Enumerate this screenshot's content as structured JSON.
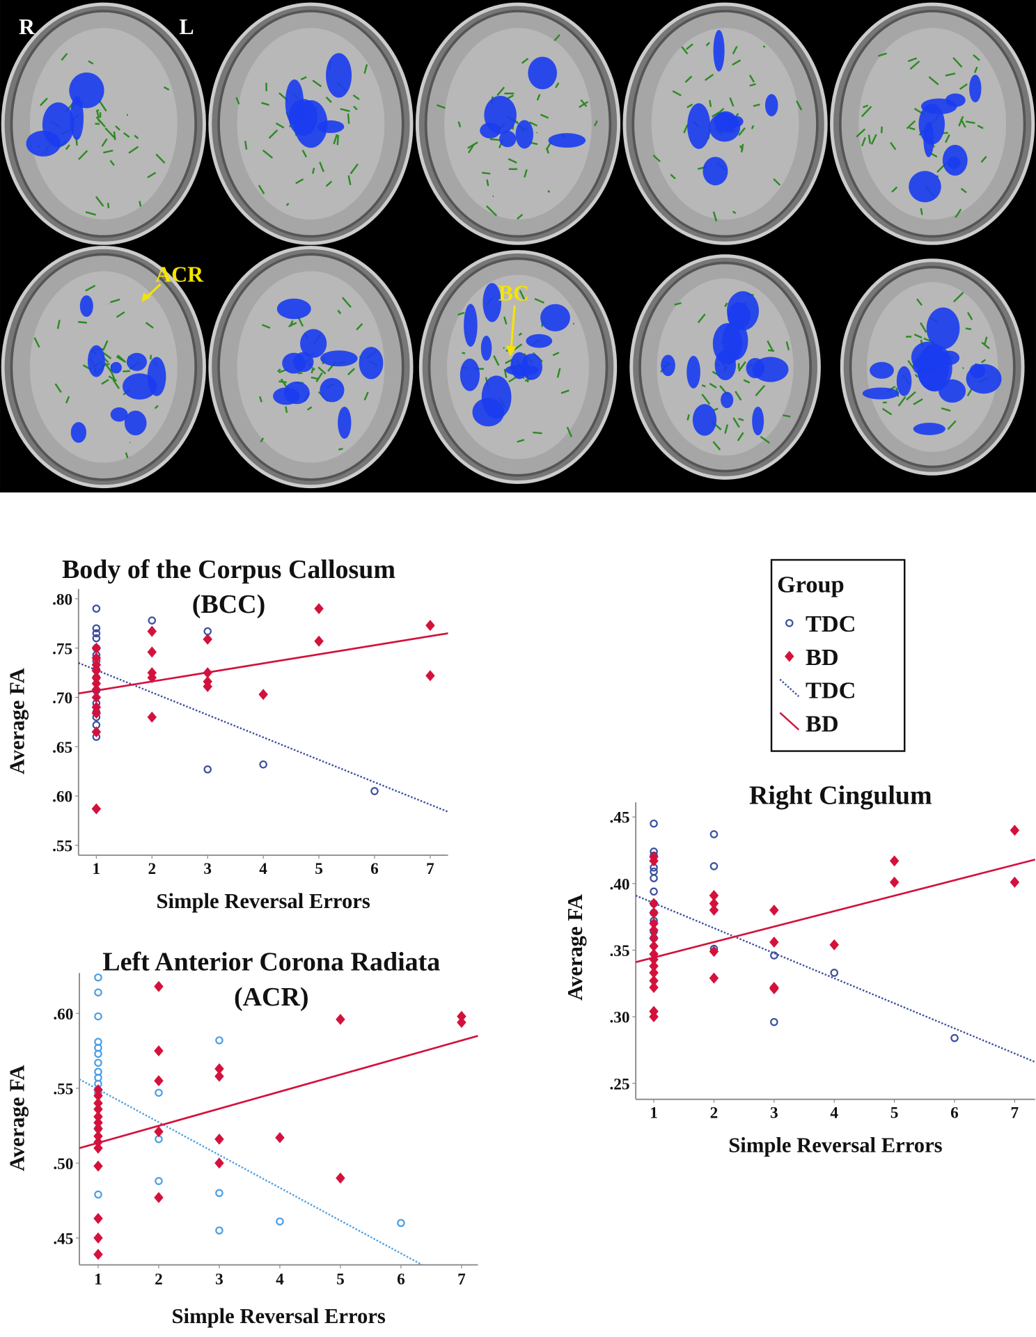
{
  "figure": {
    "orientation": [
      "R",
      "L"
    ],
    "annotations": [
      "ACR",
      "BC"
    ]
  },
  "chart_data": [
    {
      "type": "scatter",
      "title": "Body of the Corpus Callosum",
      "subtitle": "(BCC)",
      "x_label": "Simple Reversal Errors",
      "y_label": "Average FA",
      "xlim": [
        0.68,
        7.32
      ],
      "ylim": [
        0.54,
        0.81
      ],
      "xticks": [
        1,
        2,
        3,
        4,
        5,
        6,
        7
      ],
      "yticks": [
        {
          "value": 0.55,
          "label": ".55"
        },
        {
          "value": 0.6,
          "label": ".60"
        },
        {
          "value": 0.65,
          "label": ".65"
        },
        {
          "value": 0.7,
          "label": ".70"
        },
        {
          "value": 0.75,
          "label": ".75"
        },
        {
          "value": 0.8,
          "label": ".80"
        }
      ],
      "series": [
        {
          "name": "TDC",
          "color": "#3a4f9e",
          "marker": "circle",
          "x": [
            1,
            1,
            1,
            1,
            1,
            1,
            1,
            1,
            1,
            1,
            1,
            1,
            1,
            1,
            1,
            2,
            3,
            3,
            4,
            6
          ],
          "y": [
            0.79,
            0.77,
            0.765,
            0.76,
            0.75,
            0.743,
            0.737,
            0.728,
            0.72,
            0.707,
            0.694,
            0.685,
            0.68,
            0.672,
            0.66,
            0.778,
            0.767,
            0.627,
            0.632,
            0.605
          ]
        },
        {
          "name": "BD",
          "color": "#d3123c",
          "marker": "diamond",
          "x": [
            1,
            1,
            1,
            1,
            1,
            1,
            1,
            1,
            1,
            1,
            1,
            1,
            2,
            2,
            2,
            2,
            2,
            3,
            3,
            3,
            3,
            4,
            5,
            5,
            7,
            7
          ],
          "y": [
            0.75,
            0.74,
            0.733,
            0.727,
            0.72,
            0.714,
            0.708,
            0.7,
            0.69,
            0.684,
            0.665,
            0.587,
            0.767,
            0.746,
            0.725,
            0.72,
            0.68,
            0.759,
            0.725,
            0.716,
            0.711,
            0.703,
            0.79,
            0.757,
            0.773,
            0.722
          ]
        }
      ],
      "fit_lines": [
        {
          "name": "TDC",
          "color": "#3a4f9e",
          "style": "dotted",
          "x": [
            0.68,
            7.32
          ],
          "y": [
            0.735,
            0.584
          ]
        },
        {
          "name": "BD",
          "color": "#d3123c",
          "style": "solid",
          "x": [
            0.68,
            7.32
          ],
          "y": [
            0.704,
            0.765
          ]
        }
      ]
    },
    {
      "type": "scatter",
      "title": "Left Anterior Corona Radiata",
      "subtitle": "(ACR)",
      "x_label": "Simple Reversal Errors",
      "y_label": "Average FA",
      "xlim": [
        0.69,
        7.27
      ],
      "ylim": [
        0.432,
        0.627
      ],
      "xticks": [
        1,
        2,
        3,
        4,
        5,
        6,
        7
      ],
      "yticks": [
        {
          "value": 0.45,
          "label": ".45"
        },
        {
          "value": 0.5,
          "label": ".50"
        },
        {
          "value": 0.55,
          "label": ".55"
        },
        {
          "value": 0.6,
          "label": ".60"
        }
      ],
      "series": [
        {
          "name": "TDC",
          "color": "#4b9fe4",
          "marker": "circle",
          "x": [
            1,
            1,
            1,
            1,
            1,
            1,
            1,
            1,
            1,
            1,
            1,
            1,
            1,
            2,
            2,
            2,
            3,
            3,
            3,
            4,
            6
          ],
          "y": [
            0.624,
            0.614,
            0.598,
            0.581,
            0.577,
            0.573,
            0.567,
            0.561,
            0.557,
            0.553,
            0.547,
            0.523,
            0.479,
            0.547,
            0.516,
            0.488,
            0.582,
            0.48,
            0.455,
            0.461,
            0.46
          ]
        },
        {
          "name": "BD",
          "color": "#d3123c",
          "marker": "diamond",
          "x": [
            1,
            1,
            1,
            1,
            1,
            1,
            1,
            1,
            1,
            1,
            1,
            1,
            1,
            1,
            2,
            2,
            2,
            2,
            2,
            3,
            3,
            3,
            3,
            4,
            5,
            5,
            7,
            7
          ],
          "y": [
            0.549,
            0.545,
            0.54,
            0.536,
            0.531,
            0.527,
            0.523,
            0.518,
            0.514,
            0.51,
            0.498,
            0.463,
            0.45,
            0.439,
            0.618,
            0.575,
            0.555,
            0.521,
            0.477,
            0.563,
            0.558,
            0.516,
            0.5,
            0.517,
            0.596,
            0.49,
            0.598,
            0.594
          ]
        }
      ],
      "fit_lines": [
        {
          "name": "TDC",
          "color": "#4b9fe4",
          "style": "dotted",
          "x": [
            0.69,
            6.35
          ],
          "y": [
            0.556,
            0.432
          ]
        },
        {
          "name": "BD",
          "color": "#d3123c",
          "style": "solid",
          "x": [
            0.69,
            7.27
          ],
          "y": [
            0.51,
            0.585
          ]
        }
      ]
    },
    {
      "type": "scatter",
      "title": "Right Cingulum",
      "x_label": "Simple Reversal Errors",
      "y_label": "Average FA",
      "xlim": [
        0.7,
        7.34
      ],
      "ylim": [
        0.238,
        0.461
      ],
      "xticks": [
        1,
        2,
        3,
        4,
        5,
        6,
        7
      ],
      "yticks": [
        {
          "value": 0.25,
          "label": ".25"
        },
        {
          "value": 0.3,
          "label": ".30"
        },
        {
          "value": 0.35,
          "label": ".35"
        },
        {
          "value": 0.4,
          "label": ".40"
        },
        {
          "value": 0.45,
          "label": ".45"
        }
      ],
      "legend": {
        "title": "Group"
      },
      "series": [
        {
          "name": "TDC",
          "color": "#3a4f9e",
          "marker": "circle",
          "x": [
            1,
            1,
            1,
            1,
            1,
            1,
            1,
            1,
            1,
            1,
            1,
            1,
            2,
            2,
            2,
            3,
            3,
            4,
            6
          ],
          "y": [
            0.445,
            0.424,
            0.421,
            0.412,
            0.409,
            0.404,
            0.394,
            0.385,
            0.378,
            0.372,
            0.364,
            0.359,
            0.437,
            0.413,
            0.351,
            0.346,
            0.296,
            0.333,
            0.284
          ]
        },
        {
          "name": "BD",
          "color": "#d3123c",
          "marker": "diamond",
          "x": [
            1,
            1,
            1,
            1,
            1,
            1,
            1,
            1,
            1,
            1,
            1,
            1,
            1,
            1,
            1,
            1,
            2,
            2,
            2,
            2,
            2,
            3,
            3,
            3,
            3,
            4,
            5,
            5,
            7,
            7
          ],
          "y": [
            0.42,
            0.417,
            0.385,
            0.378,
            0.37,
            0.365,
            0.359,
            0.353,
            0.347,
            0.343,
            0.338,
            0.333,
            0.327,
            0.322,
            0.304,
            0.3,
            0.391,
            0.385,
            0.38,
            0.349,
            0.329,
            0.38,
            0.356,
            0.322,
            0.321,
            0.354,
            0.417,
            0.401,
            0.44,
            0.401
          ]
        }
      ],
      "fit_lines": [
        {
          "name": "TDC",
          "color": "#3a4f9e",
          "style": "dotted",
          "x": [
            0.7,
            7.34
          ],
          "y": [
            0.391,
            0.266
          ]
        },
        {
          "name": "BD",
          "color": "#d3123c",
          "style": "solid",
          "x": [
            0.7,
            7.34
          ],
          "y": [
            0.341,
            0.418
          ]
        }
      ]
    }
  ]
}
